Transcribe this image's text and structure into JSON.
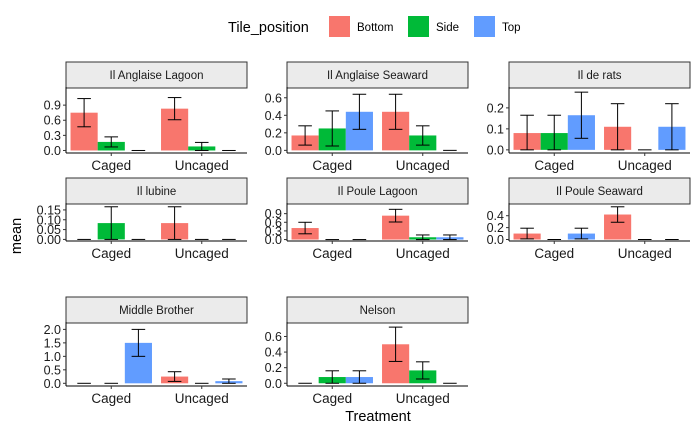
{
  "chart_data": {
    "type": "bar",
    "xlabel": "Treatment",
    "ylabel": "mean",
    "legend": {
      "title": "Tile_position",
      "placement": "top",
      "entries": [
        {
          "name": "Bottom",
          "color": "#F8766D"
        },
        {
          "name": "Side",
          "color": "#00BA38"
        },
        {
          "name": "Top",
          "color": "#619CFF"
        }
      ]
    },
    "categories": [
      "Caged",
      "Uncaged"
    ],
    "series_names": [
      "Bottom",
      "Side",
      "Top"
    ],
    "facets": [
      {
        "title": "Il Anglaise Lagoon",
        "ylim": [
          -0.05,
          1.22
        ],
        "yticks": [
          0.0,
          0.3,
          0.6,
          0.9
        ],
        "ytick_labels": [
          "0.0",
          "0.3",
          "0.6",
          "0.9"
        ],
        "values": {
          "Caged": [
            0.75,
            0.17,
            0.0
          ],
          "Uncaged": [
            0.83,
            0.08,
            0.0
          ]
        },
        "errors": {
          "Caged": [
            0.28,
            0.1,
            0.0
          ],
          "Uncaged": [
            0.22,
            0.08,
            0.0
          ]
        }
      },
      {
        "title": "Il Anglaise Seaward",
        "ylim": [
          -0.03,
          0.7
        ],
        "yticks": [
          0.0,
          0.2,
          0.4,
          0.6
        ],
        "ytick_labels": [
          "0.0",
          "0.2",
          "0.4",
          "0.6"
        ],
        "values": {
          "Caged": [
            0.17,
            0.25,
            0.44
          ],
          "Uncaged": [
            0.44,
            0.17,
            0.0
          ]
        },
        "errors": {
          "Caged": [
            0.11,
            0.2,
            0.2
          ],
          "Uncaged": [
            0.2,
            0.11,
            0.0
          ]
        }
      },
      {
        "title": "Il de rats",
        "ylim": [
          -0.015,
          0.29
        ],
        "yticks": [
          0.0,
          0.1,
          0.2
        ],
        "ytick_labels": [
          "0.0",
          "0.1",
          "0.2"
        ],
        "values": {
          "Caged": [
            0.08,
            0.08,
            0.165
          ],
          "Uncaged": [
            0.11,
            0.0,
            0.11
          ]
        },
        "errors": {
          "Caged": [
            0.085,
            0.085,
            0.11
          ],
          "Uncaged": [
            0.11,
            0.0,
            0.11
          ]
        }
      },
      {
        "title": "Il lubine",
        "ylim": [
          -0.008,
          0.175
        ],
        "yticks": [
          0.0,
          0.05,
          0.1,
          0.15
        ],
        "ytick_labels": [
          "0.00",
          "0.05",
          "0.10",
          "0.15"
        ],
        "values": {
          "Caged": [
            0.0,
            0.083,
            0.0
          ],
          "Uncaged": [
            0.083,
            0.0,
            0.0
          ]
        },
        "errors": {
          "Caged": [
            0.0,
            0.083,
            0.0
          ],
          "Uncaged": [
            0.083,
            0.0,
            0.0
          ]
        }
      },
      {
        "title": "Il Poule Lagoon",
        "ylim": [
          -0.05,
          1.2
        ],
        "yticks": [
          0.0,
          0.3,
          0.6,
          0.9
        ],
        "ytick_labels": [
          "0.0",
          "0.3",
          "0.6",
          "0.9"
        ],
        "values": {
          "Caged": [
            0.4,
            0.0,
            0.0
          ],
          "Uncaged": [
            0.83,
            0.08,
            0.08
          ]
        },
        "errors": {
          "Caged": [
            0.2,
            0.0,
            0.0
          ],
          "Uncaged": [
            0.22,
            0.08,
            0.08
          ]
        }
      },
      {
        "title": "Il Poule Seaward",
        "ylim": [
          -0.025,
          0.58
        ],
        "yticks": [
          0.0,
          0.2,
          0.4
        ],
        "ytick_labels": [
          "0.0",
          "0.2",
          "0.4"
        ],
        "values": {
          "Caged": [
            0.1,
            0.0,
            0.1
          ],
          "Uncaged": [
            0.42,
            0.0,
            0.0
          ]
        },
        "errors": {
          "Caged": [
            0.09,
            0.0,
            0.09
          ],
          "Uncaged": [
            0.13,
            0.0,
            0.0
          ]
        }
      },
      {
        "title": "Middle Brother",
        "ylim": [
          -0.1,
          2.2
        ],
        "yticks": [
          0.0,
          0.5,
          1.0,
          1.5,
          2.0
        ],
        "ytick_labels": [
          "0.0",
          "0.5",
          "1.0",
          "1.5",
          "2.0"
        ],
        "values": {
          "Caged": [
            0.0,
            0.0,
            1.5
          ],
          "Uncaged": [
            0.25,
            0.0,
            0.08
          ]
        },
        "errors": {
          "Caged": [
            0.0,
            0.0,
            0.5
          ],
          "Uncaged": [
            0.18,
            0.0,
            0.08
          ]
        }
      },
      {
        "title": "Nelson",
        "ylim": [
          -0.035,
          0.76
        ],
        "yticks": [
          0.0,
          0.2,
          0.4,
          0.6
        ],
        "ytick_labels": [
          "0.0",
          "0.2",
          "0.4",
          "0.6"
        ],
        "values": {
          "Caged": [
            0.0,
            0.08,
            0.08
          ],
          "Uncaged": [
            0.5,
            0.165,
            0.0
          ]
        },
        "errors": {
          "Caged": [
            0.0,
            0.08,
            0.08
          ],
          "Uncaged": [
            0.22,
            0.11,
            0.0
          ]
        }
      }
    ],
    "grid": false
  }
}
